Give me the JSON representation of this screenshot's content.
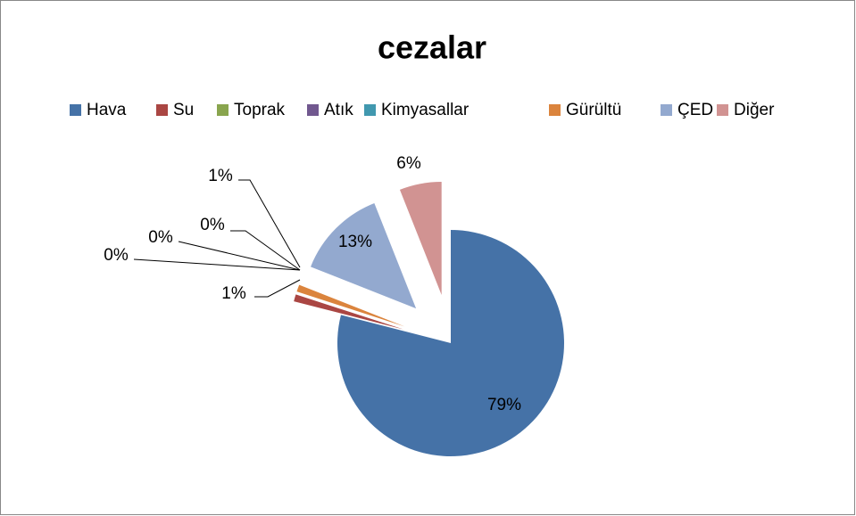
{
  "chart_data": {
    "type": "pie",
    "title": "cezalar",
    "categories": [
      "Hava",
      "Su",
      "Toprak",
      "Atık",
      "Kimyasallar",
      "Gürültü",
      "ÇED",
      "Diğer"
    ],
    "values": [
      79,
      1,
      0,
      0,
      0,
      1,
      13,
      6
    ],
    "value_labels": [
      "79%",
      "1%",
      "0%",
      "0%",
      "0%",
      "1%",
      "13%",
      "6%"
    ],
    "colors": [
      "#4572a7",
      "#aa4643",
      "#89a54e",
      "#71588f",
      "#4198af",
      "#db843d",
      "#93a9cf",
      "#d19392"
    ],
    "legend": "top"
  }
}
